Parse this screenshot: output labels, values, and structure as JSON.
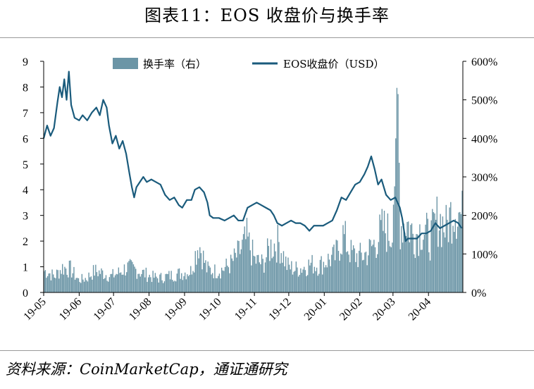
{
  "page": {
    "title": "图表11：EOS 收盘价与换手率",
    "source": "资料来源：CoinMarketCap，通证通研究"
  },
  "colors": {
    "bar": "#6b95a6",
    "line": "#1a5b7c",
    "axis": "#000000"
  },
  "chart_data": {
    "type": "bar+line",
    "title": "图表11：EOS 收盘价与换手率",
    "x_tick_labels": [
      "19-05",
      "19-06",
      "19-07",
      "19-08",
      "19-09",
      "19-10",
      "19-11",
      "19-12",
      "20-01",
      "20-02",
      "20-03",
      "20-04"
    ],
    "left_axis": {
      "ylim": [
        0,
        9
      ],
      "ticks": [
        "0",
        "1",
        "2",
        "3",
        "4",
        "5",
        "6",
        "7",
        "8",
        "9"
      ]
    },
    "right_axis": {
      "ylim": [
        0,
        600
      ],
      "ticks": [
        "0%",
        "100%",
        "200%",
        "300%",
        "400%",
        "500%",
        "600%"
      ]
    },
    "legend": {
      "placement": "top-center",
      "entries": [
        "换手率（右）",
        "EOS收盘价（USD）"
      ]
    },
    "grid": false,
    "series": [
      {
        "name": "EOS收盘价（USD）",
        "type": "line",
        "axis": "left",
        "points": [
          [
            "2019-05-01",
            6.0
          ],
          [
            "2019-05-04",
            6.5
          ],
          [
            "2019-05-07",
            6.1
          ],
          [
            "2019-05-10",
            6.4
          ],
          [
            "2019-05-13",
            7.4
          ],
          [
            "2019-05-15",
            8.0
          ],
          [
            "2019-05-17",
            7.6
          ],
          [
            "2019-05-19",
            8.3
          ],
          [
            "2019-05-21",
            7.5
          ],
          [
            "2019-05-23",
            8.6
          ],
          [
            "2019-05-25",
            7.3
          ],
          [
            "2019-05-28",
            6.8
          ],
          [
            "2019-06-01",
            6.7
          ],
          [
            "2019-06-04",
            6.9
          ],
          [
            "2019-06-08",
            6.7
          ],
          [
            "2019-06-12",
            7.0
          ],
          [
            "2019-06-16",
            7.2
          ],
          [
            "2019-06-19",
            6.9
          ],
          [
            "2019-06-22",
            7.5
          ],
          [
            "2019-06-25",
            7.2
          ],
          [
            "2019-06-27",
            6.5
          ],
          [
            "2019-06-30",
            5.8
          ],
          [
            "2019-07-03",
            6.1
          ],
          [
            "2019-07-06",
            5.6
          ],
          [
            "2019-07-09",
            5.9
          ],
          [
            "2019-07-12",
            5.4
          ],
          [
            "2019-07-15",
            4.6
          ],
          [
            "2019-07-17",
            4.1
          ],
          [
            "2019-07-19",
            3.7
          ],
          [
            "2019-07-21",
            4.1
          ],
          [
            "2019-07-24",
            4.3
          ],
          [
            "2019-07-27",
            4.5
          ],
          [
            "2019-07-30",
            4.3
          ],
          [
            "2019-08-03",
            4.4
          ],
          [
            "2019-08-07",
            4.3
          ],
          [
            "2019-08-11",
            4.2
          ],
          [
            "2019-08-15",
            3.8
          ],
          [
            "2019-08-19",
            3.6
          ],
          [
            "2019-08-23",
            3.7
          ],
          [
            "2019-08-27",
            3.4
          ],
          [
            "2019-08-30",
            3.3
          ],
          [
            "2019-09-03",
            3.6
          ],
          [
            "2019-09-07",
            3.6
          ],
          [
            "2019-09-10",
            4.0
          ],
          [
            "2019-09-14",
            4.1
          ],
          [
            "2019-09-18",
            3.9
          ],
          [
            "2019-09-21",
            3.5
          ],
          [
            "2019-09-23",
            3.0
          ],
          [
            "2019-09-26",
            2.9
          ],
          [
            "2019-10-01",
            2.9
          ],
          [
            "2019-10-06",
            2.8
          ],
          [
            "2019-10-10",
            2.9
          ],
          [
            "2019-10-14",
            3.0
          ],
          [
            "2019-10-18",
            2.8
          ],
          [
            "2019-10-22",
            2.8
          ],
          [
            "2019-10-26",
            3.3
          ],
          [
            "2019-10-30",
            3.4
          ],
          [
            "2019-11-03",
            3.5
          ],
          [
            "2019-11-07",
            3.4
          ],
          [
            "2019-11-11",
            3.3
          ],
          [
            "2019-11-15",
            3.2
          ],
          [
            "2019-11-18",
            3.0
          ],
          [
            "2019-11-21",
            2.7
          ],
          [
            "2019-11-25",
            2.6
          ],
          [
            "2019-11-29",
            2.7
          ],
          [
            "2019-12-03",
            2.8
          ],
          [
            "2019-12-07",
            2.7
          ],
          [
            "2019-12-11",
            2.7
          ],
          [
            "2019-12-15",
            2.6
          ],
          [
            "2019-12-19",
            2.4
          ],
          [
            "2019-12-23",
            2.6
          ],
          [
            "2019-12-27",
            2.6
          ],
          [
            "2019-12-31",
            2.6
          ],
          [
            "2020-01-04",
            2.7
          ],
          [
            "2020-01-08",
            2.8
          ],
          [
            "2020-01-12",
            3.2
          ],
          [
            "2020-01-16",
            3.7
          ],
          [
            "2020-01-20",
            3.6
          ],
          [
            "2020-01-24",
            3.9
          ],
          [
            "2020-01-28",
            4.2
          ],
          [
            "2020-02-01",
            4.3
          ],
          [
            "2020-02-05",
            4.6
          ],
          [
            "2020-02-08",
            4.9
          ],
          [
            "2020-02-11",
            5.3
          ],
          [
            "2020-02-14",
            4.8
          ],
          [
            "2020-02-17",
            4.2
          ],
          [
            "2020-02-20",
            4.4
          ],
          [
            "2020-02-24",
            3.8
          ],
          [
            "2020-02-28",
            3.6
          ],
          [
            "2020-03-03",
            3.7
          ],
          [
            "2020-03-07",
            3.3
          ],
          [
            "2020-03-09",
            2.9
          ],
          [
            "2020-03-12",
            2.0
          ],
          [
            "2020-03-14",
            2.1
          ],
          [
            "2020-03-18",
            2.1
          ],
          [
            "2020-03-22",
            2.1
          ],
          [
            "2020-03-26",
            2.3
          ],
          [
            "2020-03-30",
            2.3
          ],
          [
            "2020-04-03",
            2.4
          ],
          [
            "2020-04-07",
            2.7
          ],
          [
            "2020-04-11",
            2.5
          ],
          [
            "2020-04-15",
            2.6
          ],
          [
            "2020-04-19",
            2.7
          ],
          [
            "2020-04-23",
            2.8
          ],
          [
            "2020-04-27",
            2.7
          ],
          [
            "2020-04-30",
            2.5
          ]
        ]
      },
      {
        "name": "换手率（右）",
        "type": "bar",
        "axis": "right",
        "points": [
          [
            "2019-05-03",
            60
          ],
          [
            "2019-05-10",
            45
          ],
          [
            "2019-05-17",
            70
          ],
          [
            "2019-05-24",
            65
          ],
          [
            "2019-05-31",
            35
          ],
          [
            "2019-06-07",
            40
          ],
          [
            "2019-06-14",
            60
          ],
          [
            "2019-06-21",
            55
          ],
          [
            "2019-06-28",
            45
          ],
          [
            "2019-07-05",
            55
          ],
          [
            "2019-07-12",
            70
          ],
          [
            "2019-07-19",
            65
          ],
          [
            "2019-07-26",
            55
          ],
          [
            "2019-08-02",
            45
          ],
          [
            "2019-08-09",
            40
          ],
          [
            "2019-08-16",
            45
          ],
          [
            "2019-08-23",
            50
          ],
          [
            "2019-08-30",
            55
          ],
          [
            "2019-09-06",
            60
          ],
          [
            "2019-09-13",
            140
          ],
          [
            "2019-09-20",
            65
          ],
          [
            "2019-09-27",
            60
          ],
          [
            "2019-10-04",
            65
          ],
          [
            "2019-10-11",
            80
          ],
          [
            "2019-10-18",
            110
          ],
          [
            "2019-10-25",
            150
          ],
          [
            "2019-11-01",
            90
          ],
          [
            "2019-11-08",
            80
          ],
          [
            "2019-11-15",
            130
          ],
          [
            "2019-11-22",
            140
          ],
          [
            "2019-11-29",
            75
          ],
          [
            "2019-12-06",
            65
          ],
          [
            "2019-12-13",
            70
          ],
          [
            "2019-12-20",
            80
          ],
          [
            "2019-12-27",
            75
          ],
          [
            "2020-01-03",
            90
          ],
          [
            "2020-01-10",
            100
          ],
          [
            "2020-01-17",
            160
          ],
          [
            "2020-01-24",
            110
          ],
          [
            "2020-01-31",
            100
          ],
          [
            "2020-02-07",
            110
          ],
          [
            "2020-02-14",
            140
          ],
          [
            "2020-02-21",
            180
          ],
          [
            "2020-02-28",
            160
          ],
          [
            "2020-03-03",
            400
          ],
          [
            "2020-03-05",
            515
          ],
          [
            "2020-03-07",
            190
          ],
          [
            "2020-03-12",
            200
          ],
          [
            "2020-03-19",
            160
          ],
          [
            "2020-03-26",
            180
          ],
          [
            "2020-04-02",
            150
          ],
          [
            "2020-04-09",
            210
          ],
          [
            "2020-04-16",
            180
          ],
          [
            "2020-04-23",
            245
          ],
          [
            "2020-04-30",
            210
          ]
        ]
      }
    ]
  }
}
